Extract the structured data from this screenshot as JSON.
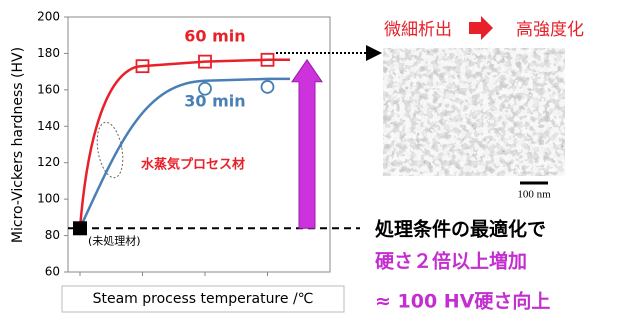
{
  "chart_data": {
    "type": "line",
    "ylabel": "Micro-Vickers hardness (HV)",
    "xlabel": "Steam process temperature /℃",
    "ylim": [
      60,
      200
    ],
    "yticks": [
      60,
      80,
      100,
      120,
      140,
      160,
      180,
      200
    ],
    "categories": [
      null,
      null,
      null,
      null
    ],
    "series": [
      {
        "name": "60 min",
        "color": "#e8202a",
        "marker": "square",
        "values": [
          null,
          173,
          175.5,
          176.5
        ]
      },
      {
        "name": "30 min",
        "color": "#4a7fb5",
        "marker": "circle",
        "values": [
          null,
          null,
          165,
          166
        ]
      }
    ],
    "untreated": {
      "label": "(未処理材)",
      "value": 84,
      "color": "#000000"
    },
    "annotation": "水蒸気プロセス材"
  },
  "micrograph": {
    "left": "微細析出",
    "right": "高強度化",
    "scale": "100 nm"
  },
  "notes": [
    "処理条件の最適化で",
    "硬さ２倍以上増加",
    "≈ 100 HV硬さ向上"
  ]
}
